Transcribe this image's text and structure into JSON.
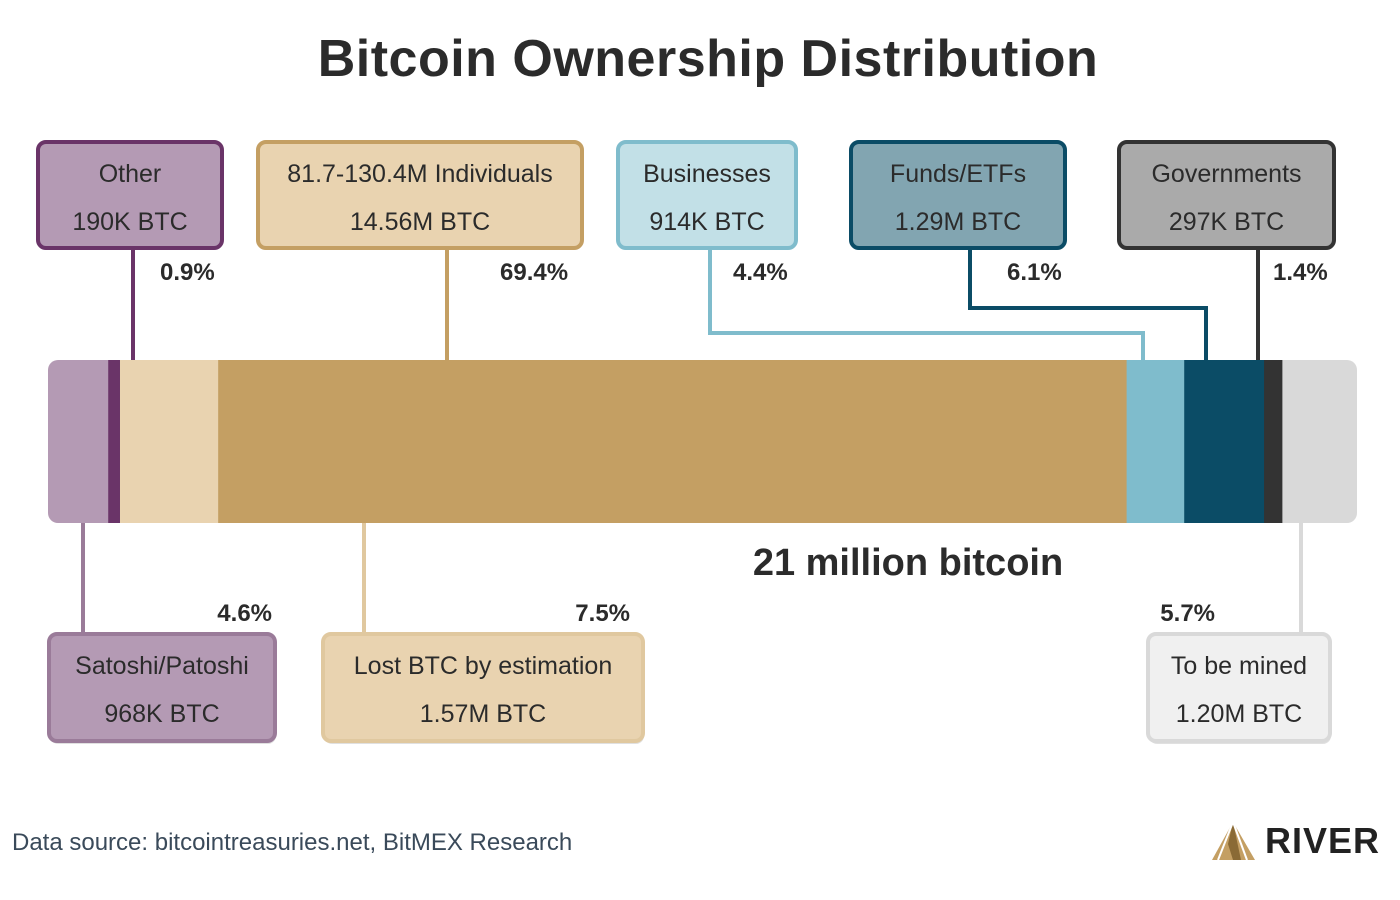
{
  "title": "Bitcoin Ownership Distribution",
  "bar_caption": "21 million bitcoin",
  "source": "Data source: bitcointreasuries.net, BitMEX Research",
  "brand": "RIVER",
  "colors": {
    "satoshi": "#b49ab4",
    "other": "#6a3468",
    "lost": "#e9d3b0",
    "individuals": "#c49f63",
    "businesses": "#7fbccc",
    "funds": "#0b4c66",
    "governments": "#333333",
    "to_be_mined": "#d9d9d9"
  },
  "chart_data": {
    "type": "bar",
    "stacked": true,
    "orientation": "horizontal",
    "title": "Bitcoin Ownership Distribution",
    "total_label": "21 million bitcoin",
    "segments": [
      {
        "key": "satoshi",
        "name": "Satoshi/Patoshi",
        "amount": "968K BTC",
        "percent_label": "4.6%",
        "value": 4.6
      },
      {
        "key": "other",
        "name": "Other",
        "amount": "190K BTC",
        "percent_label": "0.9%",
        "value": 0.9
      },
      {
        "key": "lost",
        "name": "Lost BTC by estimation",
        "amount": "1.57M BTC",
        "percent_label": "7.5%",
        "value": 7.5
      },
      {
        "key": "individuals",
        "name": "81.7-130.4M Individuals",
        "amount": "14.56M BTC",
        "percent_label": "69.4%",
        "value": 69.4
      },
      {
        "key": "businesses",
        "name": "Businesses",
        "amount": "914K BTC",
        "percent_label": "4.4%",
        "value": 4.4
      },
      {
        "key": "funds",
        "name": "Funds/ETFs",
        "amount": "1.29M BTC",
        "percent_label": "6.1%",
        "value": 6.1
      },
      {
        "key": "governments",
        "name": "Governments",
        "amount": "297K BTC",
        "percent_label": "1.4%",
        "value": 1.4
      },
      {
        "key": "to_be_mined",
        "name": "To be mined",
        "amount": "1.20M BTC",
        "percent_label": "5.7%",
        "value": 5.7
      }
    ]
  }
}
